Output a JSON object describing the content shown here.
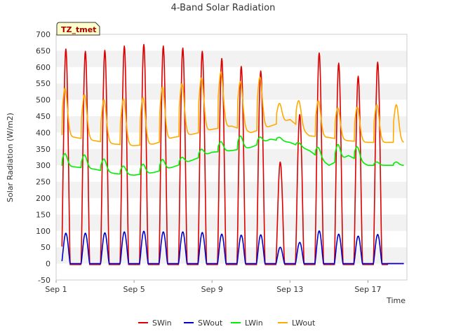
{
  "chart_data": {
    "type": "line",
    "title": "4-Band Solar Radiation",
    "xlabel": "Time",
    "ylabel": "Solar Radiation (W/m2)",
    "badge": "TZ_tmet",
    "ylim": [
      -50,
      700
    ],
    "yticks": [
      -50,
      0,
      50,
      100,
      150,
      200,
      250,
      300,
      350,
      400,
      450,
      500,
      550,
      600,
      650,
      700
    ],
    "xlim": [
      0,
      18.0
    ],
    "xticks": [
      {
        "day": 0,
        "label": "Sep 1"
      },
      {
        "day": 4,
        "label": "Sep 5"
      },
      {
        "day": 8,
        "label": "Sep 9"
      },
      {
        "day": 12,
        "label": "Sep 13"
      },
      {
        "day": 16,
        "label": "Sep 17"
      }
    ],
    "grid": "horizontal bands",
    "legend_position": "bottom",
    "series": [
      {
        "name": "SWin",
        "color": "#dd0000",
        "daily_peak": [
          655,
          648,
          651,
          664,
          669,
          664,
          658,
          648,
          626,
          602,
          588,
          310,
          455,
          643,
          612,
          572,
          615
        ]
      },
      {
        "name": "SWout",
        "color": "#0000cc",
        "daily_peak": [
          93,
          93,
          94,
          97,
          99,
          97,
          97,
          95,
          90,
          87,
          88,
          50,
          65,
          100,
          90,
          84,
          89
        ]
      },
      {
        "name": "LWin",
        "color": "#00ee00",
        "night": [
          300,
          295,
          288,
          275,
          270,
          278,
          295,
          316,
          340,
          345,
          355,
          380,
          370,
          345,
          300,
          330,
          300
        ],
        "peak": [
          338,
          335,
          325,
          300,
          300,
          310,
          315,
          338,
          370,
          385,
          375,
          390,
          380,
          375,
          350,
          370,
          310
        ]
      },
      {
        "name": "LWout",
        "color": "#ffaa00",
        "night": [
          395,
          385,
          375,
          365,
          360,
          365,
          385,
          395,
          410,
          420,
          400,
          420,
          440,
          390,
          385,
          375,
          370
        ],
        "peak": [
          540,
          520,
          505,
          505,
          505,
          530,
          545,
          560,
          580,
          565,
          560,
          480,
          520,
          500,
          480,
          480,
          485
        ]
      }
    ]
  }
}
